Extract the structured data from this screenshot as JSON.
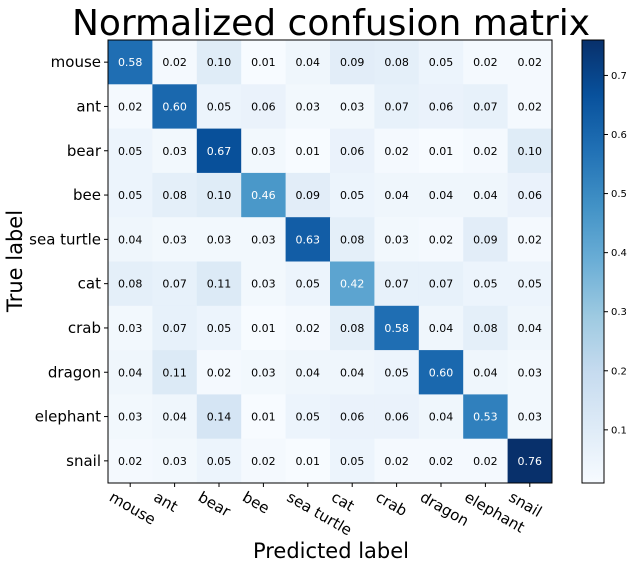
{
  "chart_data": {
    "type": "heatmap",
    "title": "Normalized confusion matrix",
    "xlabel": "Predicted label",
    "ylabel": "True label",
    "x_categories": [
      "mouse",
      "ant",
      "bear",
      "bee",
      "sea turtle",
      "cat",
      "crab",
      "dragon",
      "elephant",
      "snail"
    ],
    "y_categories": [
      "mouse",
      "ant",
      "bear",
      "bee",
      "sea turtle",
      "cat",
      "crab",
      "dragon",
      "elephant",
      "snail"
    ],
    "values": [
      [
        0.58,
        0.02,
        0.1,
        0.01,
        0.04,
        0.09,
        0.08,
        0.05,
        0.02,
        0.02
      ],
      [
        0.02,
        0.6,
        0.05,
        0.06,
        0.03,
        0.03,
        0.07,
        0.06,
        0.07,
        0.02
      ],
      [
        0.05,
        0.03,
        0.67,
        0.03,
        0.01,
        0.06,
        0.02,
        0.01,
        0.02,
        0.1
      ],
      [
        0.05,
        0.08,
        0.1,
        0.46,
        0.09,
        0.05,
        0.04,
        0.04,
        0.04,
        0.06
      ],
      [
        0.04,
        0.03,
        0.03,
        0.03,
        0.63,
        0.08,
        0.03,
        0.02,
        0.09,
        0.02
      ],
      [
        0.08,
        0.07,
        0.11,
        0.03,
        0.05,
        0.42,
        0.07,
        0.07,
        0.05,
        0.05
      ],
      [
        0.03,
        0.07,
        0.05,
        0.01,
        0.02,
        0.08,
        0.58,
        0.04,
        0.08,
        0.04
      ],
      [
        0.04,
        0.11,
        0.02,
        0.03,
        0.04,
        0.04,
        0.05,
        0.6,
        0.04,
        0.03
      ],
      [
        0.03,
        0.04,
        0.14,
        0.01,
        0.05,
        0.06,
        0.06,
        0.04,
        0.53,
        0.03
      ],
      [
        0.02,
        0.03,
        0.05,
        0.02,
        0.01,
        0.05,
        0.02,
        0.02,
        0.02,
        0.76
      ]
    ],
    "colormap": "Blues",
    "vmin": 0.01,
    "vmax": 0.76,
    "colorbar_ticks": [
      0.1,
      0.2,
      0.3,
      0.4,
      0.5,
      0.6,
      0.7
    ],
    "colorbar_tick_labels": [
      "0.1",
      "0.2",
      "0.3",
      "0.4",
      "0.5",
      "0.6",
      "0.7"
    ],
    "grid": false
  }
}
